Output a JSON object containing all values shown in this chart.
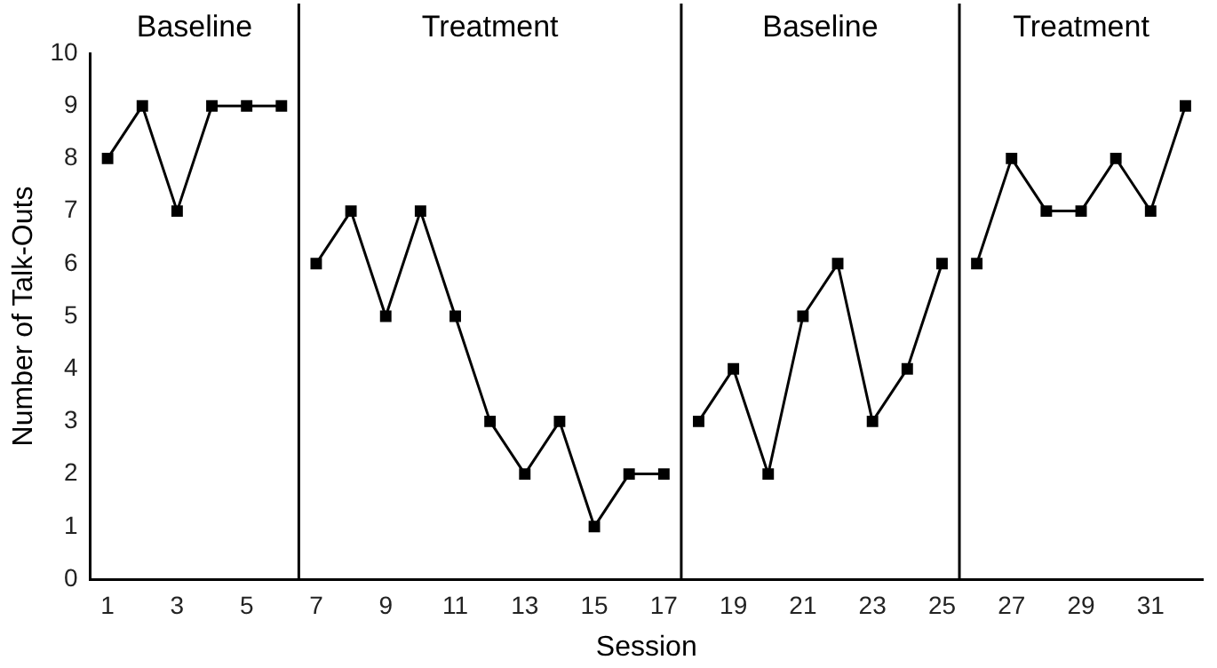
{
  "chart_data": {
    "type": "line",
    "xlabel": "Session",
    "ylabel": "Number of Talk-Outs",
    "xlim": [
      0.5,
      32.5
    ],
    "xticks": [
      1,
      3,
      5,
      7,
      9,
      11,
      13,
      15,
      17,
      19,
      21,
      23,
      25,
      27,
      29,
      31
    ],
    "ylim": [
      0,
      10
    ],
    "yticks": [
      0,
      1,
      2,
      3,
      4,
      5,
      6,
      7,
      8,
      9,
      10
    ],
    "series": [
      {
        "color": "#000000",
        "x": [
          1,
          2,
          3,
          4,
          5,
          6
        ],
        "values": [
          8,
          9,
          7,
          9,
          9,
          9
        ]
      },
      {
        "color": "#000000",
        "x": [
          7,
          8,
          9,
          10,
          11,
          12,
          13,
          14,
          15,
          16,
          17
        ],
        "values": [
          6,
          7,
          5,
          7,
          5,
          3,
          2,
          3,
          1,
          2,
          2
        ]
      },
      {
        "color": "#000000",
        "x": [
          18,
          19,
          20,
          21,
          22,
          23,
          24,
          25
        ],
        "values": [
          3,
          4,
          2,
          5,
          6,
          3,
          4,
          6
        ]
      },
      {
        "color": "#000000",
        "x": [
          26,
          27,
          28,
          29,
          30,
          31,
          32
        ],
        "values": [
          6,
          8,
          7,
          7,
          8,
          7,
          9
        ]
      }
    ],
    "ref_lines": [
      {
        "axis": "x",
        "value": 6.5,
        "color": "#000000"
      },
      {
        "axis": "x",
        "value": 17.5,
        "color": "#000000"
      },
      {
        "axis": "x",
        "value": 25.5,
        "color": "#000000"
      }
    ],
    "annotations": [
      "Baseline",
      "Treatment",
      "Baseline",
      "Treatment"
    ],
    "marker": "square",
    "line_style": "solid",
    "grid": false,
    "legend": false
  }
}
